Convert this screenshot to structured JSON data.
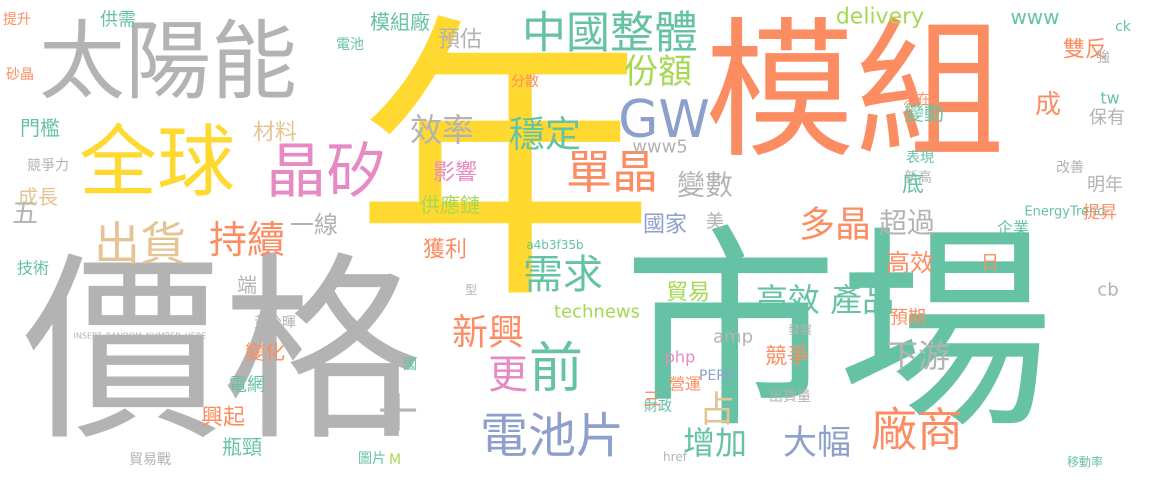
{
  "words": [
    "年",
    "模組",
    "價格",
    "市場",
    "太陽能",
    "全球",
    "晶矽",
    "中國整體",
    "GW",
    "單晶",
    "出貨",
    "持續",
    "需求",
    "新興",
    "前",
    "更",
    "電池片",
    "廠商",
    "增加",
    "大幅",
    "穩定",
    "效率",
    "份額",
    "影響",
    "變數",
    "多晶",
    "超過",
    "高效 產品",
    "高效",
    "下游",
    "占",
    "競爭",
    "一線",
    "獲利",
    "貿易",
    "預估",
    "模組廠",
    "材料",
    "門檻",
    "成長",
    "五",
    "技術",
    "黃公暉",
    "變化",
    "電網",
    "興起",
    "瓶頸",
    "貿易戰",
    "供應鏈",
    "國家",
    "delivery",
    "www",
    "www5",
    "technews",
    "amp",
    "php",
    "營運",
    "財政",
    "PERC",
    "出貨量",
    "變動",
    "表現",
    "新高",
    "預期",
    "企業",
    "EnergyTrend",
    "提昇",
    "雙反",
    "保有",
    "明年",
    "供需",
    "提升",
    "電池",
    "分散",
    "成",
    "底",
    "日",
    "cb",
    "tw",
    "圖片",
    "M",
    "國",
    "端",
    "美",
    "發展",
    "INSERT_RANDOM_NUMBER_HERE",
    "a4b3f35b",
    "砂晶",
    "競爭力",
    "改善",
    "十",
    "三",
    "落在",
    "強",
    "ck",
    "href",
    "移動率",
    "型"
  ]
}
